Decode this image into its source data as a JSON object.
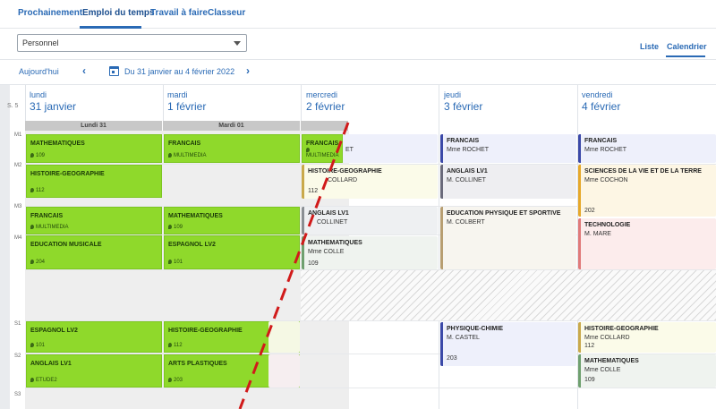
{
  "tabs": [
    "Prochainement",
    "Emploi du temps",
    "Travail à faire",
    "Classeur"
  ],
  "filter": {
    "value": "Personnel"
  },
  "view_tabs": [
    "Liste",
    "Calendrier"
  ],
  "nav": {
    "today": "Aujourd'hui",
    "range": "Du 31 janvier au 4 février 2022"
  },
  "week_label": "S. 5",
  "days": [
    {
      "name": "lundi",
      "date": "31 janvier",
      "header": "Lundi 31"
    },
    {
      "name": "mardi",
      "date": "1 février",
      "header": "Mardi 01"
    },
    {
      "name": "mercredi",
      "date": "2 février"
    },
    {
      "name": "jeudi",
      "date": "3 février"
    },
    {
      "name": "vendredi",
      "date": "4 février"
    }
  ],
  "slots": [
    "M1",
    "M2",
    "M3",
    "M4",
    "S1",
    "S2",
    "S3"
  ],
  "mon": [
    {
      "title": "MATHEMATIQUES",
      "room": "109"
    },
    {
      "title": "HISTOIRE-GEOGRAPHIE",
      "room": "112"
    },
    {
      "title": "FRANCAIS",
      "room": "MULTIMEDIA"
    },
    {
      "title": "EDUCATION MUSICALE",
      "room": "204"
    },
    {
      "title": "ESPAGNOL LV2",
      "room": "101"
    },
    {
      "title": "ANGLAIS LV1",
      "room": "ETUDE2"
    }
  ],
  "tue": [
    {
      "title": "FRANCAIS",
      "room": "MULTIMEDIA"
    },
    {
      "title": "MATHEMATIQUES",
      "room": "109"
    },
    {
      "title": "ESPAGNOL LV2",
      "room": "101"
    },
    {
      "title": "HISTOIRE-GEOGRAPHIE",
      "room": "112"
    },
    {
      "title": "ARTS PLASTIQUES",
      "room": "203"
    }
  ],
  "wed": [
    {
      "title": "FRANCAIS",
      "room": "MULTIMEDIA",
      "extra": "ET"
    },
    {
      "title": "HISTOIRE-GEOGRAPHIE",
      "room": "112",
      "extra": "COLLARD"
    },
    {
      "title": "ANGLAIS LV1",
      "extra": "COLLINET"
    },
    {
      "title": "MATHEMATIQUES",
      "person": "Mme COLLE",
      "room": "109"
    }
  ],
  "thu": [
    {
      "title": "FRANCAIS",
      "person": "Mme ROCHET"
    },
    {
      "title": "ANGLAIS LV1",
      "person": "M. COLLINET"
    },
    {
      "title": "EDUCATION PHYSIQUE ET SPORTIVE",
      "person": "M. COLBERT"
    },
    {
      "title": "PHYSIQUE-CHIMIE",
      "person": "M. CASTEL",
      "room": "203"
    }
  ],
  "fri": [
    {
      "title": "FRANCAIS",
      "person": "Mme ROCHET"
    },
    {
      "title": "SCIENCES DE LA VIE ET DE LA TERRE",
      "person": "Mme COCHON",
      "room": "202"
    },
    {
      "title": "TECHNOLOGIE",
      "person": "M. MARE"
    },
    {
      "title": "HISTOIRE-GEOGRAPHIE",
      "person": "Mme COLLARD",
      "room": "112"
    },
    {
      "title": "MATHEMATIQUES",
      "person": "Mme COLLE",
      "room": "109"
    }
  ],
  "colors": {
    "accent": "#2a6ab5",
    "done": "#8fd92b",
    "dash": "#d11a1a"
  }
}
